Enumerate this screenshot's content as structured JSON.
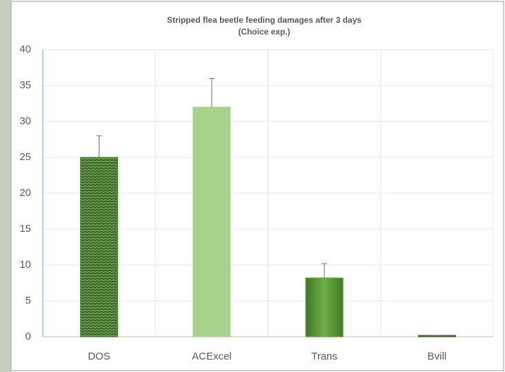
{
  "chart_data": {
    "type": "bar",
    "title": "Stripped flea beetle feeding damages after 3 days",
    "subtitle": "(Choice exp.)",
    "categories": [
      "DOS",
      "ACExcel",
      "Trans",
      "Bvill"
    ],
    "values": [
      25,
      32,
      8.2,
      0.2
    ],
    "errors": [
      3,
      4,
      2,
      0
    ],
    "colors": [
      "#4f7f35",
      "#a9d18e",
      "#5f9e3c",
      "#3f6b2a"
    ],
    "hatch": [
      true,
      false,
      false,
      false
    ],
    "ylim": [
      0,
      40
    ],
    "yticks": [
      0,
      5,
      10,
      15,
      20,
      25,
      30,
      35,
      40
    ],
    "grid": true
  }
}
